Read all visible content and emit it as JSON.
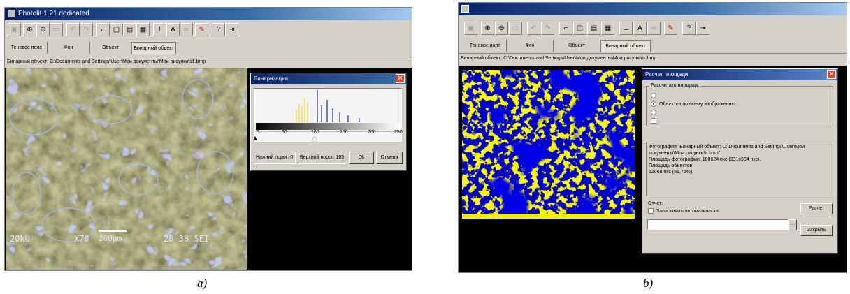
{
  "left": {
    "title": "Photolit 1.21 dedicated",
    "tabs": [
      "Теневое поле",
      "Фон",
      "Объект",
      "Бинарный объект"
    ],
    "path": "Бинарный объект: C:\\Documents and Settings\\User\\Мои документы\\Мои рисунки\\s1.bmp",
    "sem_overlay": {
      "voltage": "20kU",
      "magnification": "X70",
      "scale": "200µm",
      "code": "20 38 SEI"
    },
    "binarization": {
      "title": "Бинаризация",
      "ticks": [
        "0",
        "50",
        "100",
        "150",
        "200",
        "250"
      ],
      "lower_threshold": "Нижний порог: 0",
      "upper_threshold": "Верхний порог: 105",
      "ok": "Ok",
      "cancel": "Отмена",
      "lower_value": 0,
      "upper_value": 105,
      "max_value": 255
    }
  },
  "right": {
    "tabs": [
      "Теневое поле",
      "Фон",
      "Объект",
      "Бинарный объект"
    ],
    "path": "Бинарный объект: C:\\Documents and Settings\\User\\Мои документы\\Мои рисунки\\s.bmp",
    "area_dialog": {
      "title": "Расчет площади",
      "group_label": "Рассчитать площадь:",
      "option_selected": "Объектов по всему изображению",
      "result_lines": [
        "Фотография \"Бинарный объект: C:\\Documents and Settings\\User\\Мои",
        "документы\\Мои рисунки\\s.bmp\".",
        "Площадь фотографии: 100624 пкс (331х304 пкс).",
        "Площадь объектов:",
        "52068 пкс (51,75%)."
      ],
      "report_label": "Отчет:",
      "auto_save_label": "Записывать автоматически",
      "calc_button": "Расчет",
      "close_button": "Закрыть"
    }
  },
  "captions": {
    "a": "a)",
    "b": "b)"
  },
  "colors": {
    "titlebar": "#0a246a",
    "sem_tint": "#7b7a3c",
    "binary_blue": "#0000c8",
    "binary_yellow": "#f0f000"
  }
}
